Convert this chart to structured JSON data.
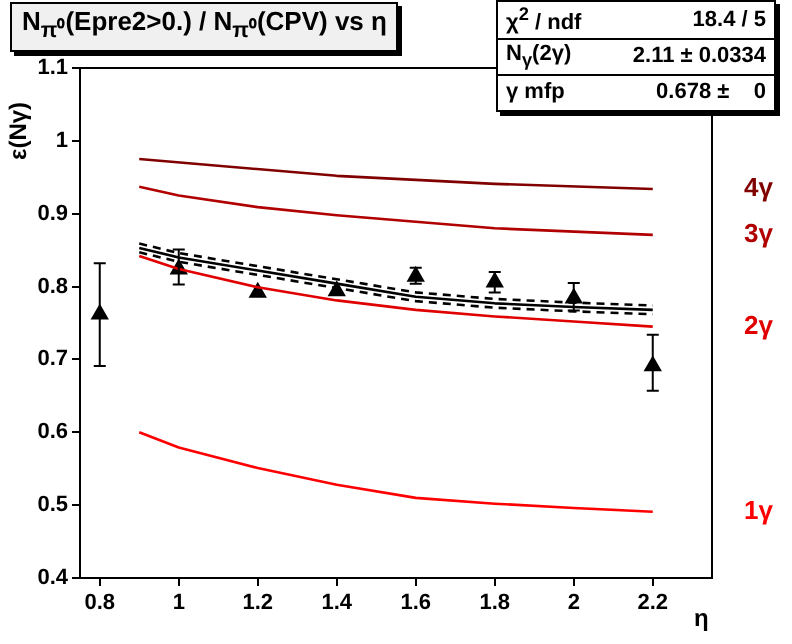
{
  "chart_data": {
    "type": "line",
    "title": "N$_{π⁰}$(Epre2>0.) / N$_{π⁰}$(CPV) vs η",
    "xlabel": "η",
    "ylabel": "ε(Nγ)",
    "annotations": [
      "χ$^{2}$ / ndf",
      "18.4 / 5",
      "N$_{γ}$(2γ)",
      "2.11 ± 0.0334",
      "γ mfp",
      "0.678 ±    0"
    ],
    "xlim": [
      0.75,
      2.35
    ],
    "xticks": [
      0.8,
      1,
      1.2,
      1.4,
      1.6,
      1.8,
      2,
      2.2
    ],
    "ylim": [
      0.4,
      1.1
    ],
    "yticks": [
      0.4,
      0.5,
      0.6,
      0.7,
      0.8,
      0.9,
      1,
      1.1
    ],
    "grid": false,
    "legend": false,
    "series": [
      {
        "name": "4γ",
        "color": "#800000",
        "type": "line",
        "marker": "none",
        "x": [
          0.9,
          1.4,
          1.8,
          2.2
        ],
        "values": [
          0.975,
          0.952,
          0.941,
          0.934
        ]
      },
      {
        "name": "3γ",
        "color": "#b00000",
        "type": "line",
        "marker": "none",
        "x": [
          0.9,
          1.0,
          1.2,
          1.4,
          1.8,
          2.2
        ],
        "values": [
          0.937,
          0.925,
          0.909,
          0.898,
          0.88,
          0.871
        ]
      },
      {
        "name": "2γ",
        "color": "#e00000",
        "type": "line",
        "marker": "none",
        "x": [
          0.9,
          1.0,
          1.2,
          1.4,
          1.6,
          1.8,
          2.0,
          2.2
        ],
        "values": [
          0.842,
          0.824,
          0.799,
          0.781,
          0.768,
          0.759,
          0.752,
          0.745
        ]
      },
      {
        "name": "1γ",
        "color": "#ff0000",
        "type": "line",
        "marker": "none",
        "x": [
          0.9,
          1.0,
          1.2,
          1.4,
          1.6,
          1.8,
          2.0,
          2.2
        ],
        "values": [
          0.6,
          0.579,
          0.551,
          0.528,
          0.51,
          0.502,
          0.496,
          0.491
        ]
      },
      {
        "color": "#000000",
        "type": "line",
        "marker": "none",
        "x": [
          0.9,
          1.0,
          1.2,
          1.4,
          1.6,
          1.8,
          2.0,
          2.2
        ],
        "values": [
          0.853,
          0.84,
          0.822,
          0.804,
          0.786,
          0.777,
          0.772,
          0.768
        ]
      },
      {
        "color": "#000000",
        "type": "line",
        "marker": "none",
        "line_style": "dashed",
        "x": [
          0.9,
          1.0,
          1.2,
          1.4,
          1.6,
          1.8,
          2.0,
          2.2
        ],
        "values": [
          0.847,
          0.834,
          0.816,
          0.798,
          0.78,
          0.771,
          0.766,
          0.762
        ]
      },
      {
        "color": "#000000",
        "type": "line",
        "marker": "none",
        "line_style": "dashed",
        "x": [
          0.9,
          1.0,
          1.2,
          1.4,
          1.6,
          1.8,
          2.0,
          2.2
        ],
        "values": [
          0.859,
          0.846,
          0.828,
          0.81,
          0.792,
          0.783,
          0.778,
          0.774
        ]
      },
      {
        "color": "#000000",
        "type": "scatter",
        "marker": "triangle",
        "x": [
          0.8,
          1.0,
          1.2,
          1.4,
          1.6,
          1.8,
          2.0,
          2.2
        ],
        "values": [
          0.762,
          0.824,
          0.792,
          0.794,
          0.814,
          0.806,
          0.784,
          0.691
        ],
        "errors": [
          [
            0.691,
            0.832
          ],
          [
            0.803,
            0.851
          ],
          null,
          null,
          [
            0.804,
            0.826
          ],
          [
            0.792,
            0.82
          ],
          [
            0.767,
            0.805
          ],
          [
            0.657,
            0.734
          ]
        ]
      }
    ]
  }
}
